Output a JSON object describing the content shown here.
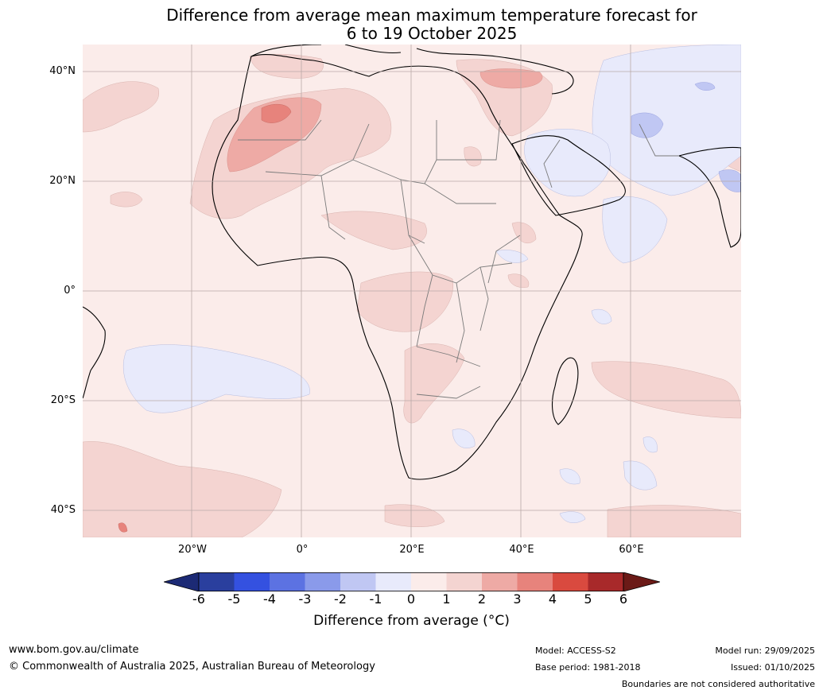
{
  "title": {
    "line1": "Difference from average mean maximum temperature forecast for",
    "line2": "6 to 19 October 2025"
  },
  "map": {
    "lat_labels": [
      "40°N",
      "20°N",
      "0°",
      "20°S",
      "40°S"
    ],
    "lon_labels": [
      "20°W",
      "0°",
      "20°E",
      "40°E",
      "60°E"
    ],
    "colors": {
      "ocean_base": "#fbecea",
      "anom_0_1": "#fbecea",
      "anom_1_2": "#f4d4d1",
      "anom_2_3": "#eeaaa5",
      "anom_3_4": "#e7837c",
      "anom_4_5": "#d94a3f",
      "anom_5_6": "#a8292a",
      "anom_gt6": "#6b1a17",
      "anom_m1_0": "#e8eafb",
      "anom_m2_m1": "#c0c7f3",
      "coast": "#000000",
      "border": "#7a7a7a",
      "grid": "#b9a9a7"
    }
  },
  "colorbar": {
    "ticks": [
      "-6",
      "-5",
      "-4",
      "-3",
      "-2",
      "-1",
      "0",
      "1",
      "2",
      "3",
      "4",
      "5",
      "6"
    ],
    "colors": [
      "#2a3f9e",
      "#3451e0",
      "#5c72e2",
      "#8a9aea",
      "#c0c7f3",
      "#e8eafb",
      "#fbecea",
      "#f4d4d1",
      "#eeaaa5",
      "#e7837c",
      "#d94a3f",
      "#a8292a"
    ],
    "low_extend": "#1c2a75",
    "high_extend": "#6b1a17",
    "label": "Difference from average (",
    "label_unit": "°C",
    "label_end": ")"
  },
  "footer": {
    "website": "www.bom.gov.au/climate",
    "copyright": "© Commonwealth of Australia 2025, Australian Bureau of Meteorology",
    "model": "Model: ACCESS-S2",
    "base_period": "Base period: 1981-2018",
    "model_run": "Model run: 29/09/2025",
    "issued": "Issued: 01/10/2025",
    "disclaimer": "Boundaries are not considered authoritative"
  }
}
